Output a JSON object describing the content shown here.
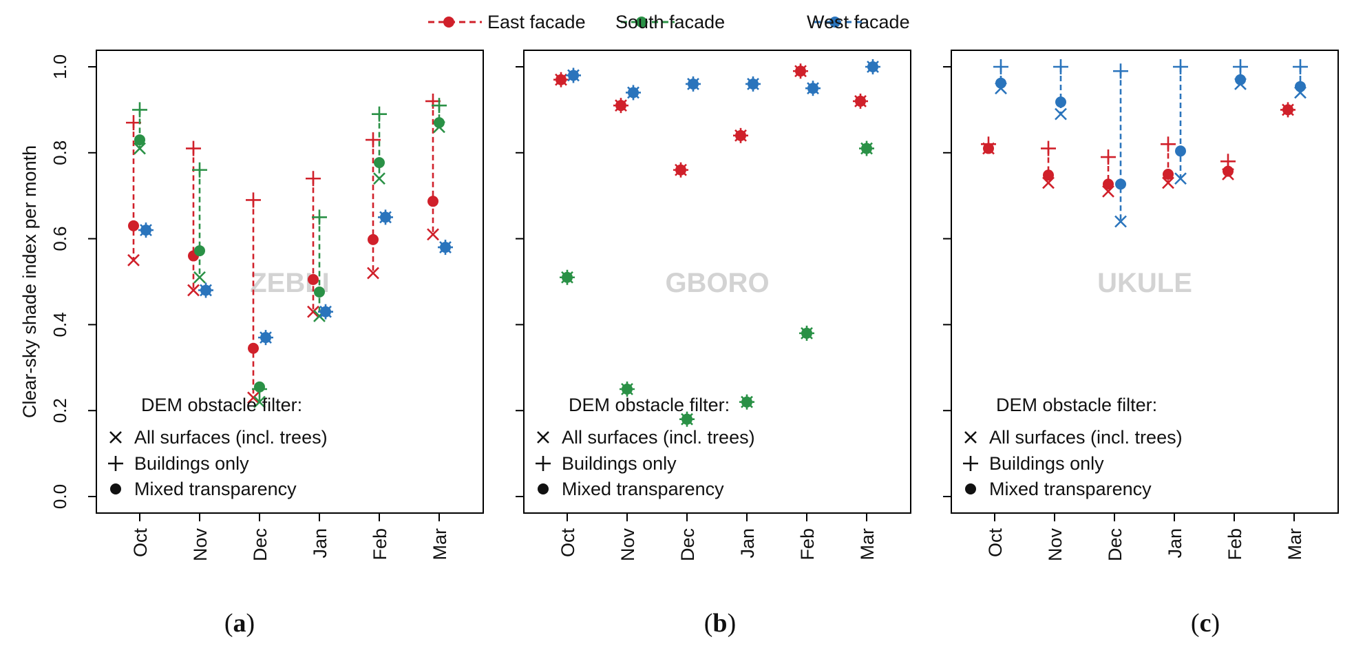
{
  "colors": {
    "east": "#d0202a",
    "south": "#2a9146",
    "west": "#2a74bc",
    "axis": "#000000",
    "watermark": "#d3d3d3"
  },
  "chart_data": {
    "type": "scatter",
    "ylabel": "Clear-sky shade index per month",
    "ylim": [
      0.0,
      1.0
    ],
    "yticks": [
      "0.0",
      "0.2",
      "0.4",
      "0.6",
      "0.8",
      "1.0"
    ],
    "ytick_values": [
      0.0,
      0.2,
      0.4,
      0.6,
      0.8,
      1.0
    ],
    "categories": [
      "Oct",
      "Nov",
      "Dec",
      "Jan",
      "Feb",
      "Mar"
    ],
    "legend": {
      "placement": "top",
      "entries": [
        {
          "name": "East facade",
          "key": "east"
        },
        {
          "name": "South facade",
          "key": "south"
        },
        {
          "name": "West facade",
          "key": "west"
        }
      ]
    },
    "filter_legend": {
      "title": "DEM obstacle filter:",
      "items": [
        {
          "symbol": "×",
          "label": "All surfaces (incl. trees)"
        },
        {
          "symbol": "+",
          "label": "Buildings only"
        },
        {
          "symbol": "●",
          "label": "Mixed transparency"
        }
      ]
    },
    "panels": [
      {
        "sublabel": "(a)",
        "sublabel_letter": "a",
        "site": "ZEBLI",
        "show_yaxis_labels": true,
        "series": [
          {
            "facade": "east",
            "all": [
              0.55,
              0.48,
              0.23,
              0.43,
              0.52,
              0.61
            ],
            "buildings": [
              0.87,
              0.81,
              0.69,
              0.74,
              0.83,
              0.92
            ],
            "mixed": [
              0.63,
              0.56,
              0.345,
              0.505,
              0.598,
              0.687
            ]
          },
          {
            "facade": "south",
            "all": [
              0.81,
              0.51,
              0.22,
              0.42,
              0.74,
              0.86
            ],
            "buildings": [
              0.9,
              0.76,
              0.25,
              0.65,
              0.89,
              0.91
            ],
            "mixed": [
              0.83,
              0.572,
              0.255,
              0.476,
              0.777,
              0.87
            ]
          },
          {
            "facade": "west",
            "all": [
              0.62,
              0.48,
              0.37,
              0.43,
              0.65,
              0.58
            ],
            "buildings": [
              0.62,
              0.48,
              0.37,
              0.43,
              0.65,
              0.58
            ],
            "mixed": [
              0.62,
              0.48,
              0.37,
              0.43,
              0.65,
              0.58
            ]
          }
        ]
      },
      {
        "sublabel": "(b)",
        "sublabel_letter": "b",
        "site": "GBORO",
        "show_yaxis_labels": false,
        "series": [
          {
            "facade": "east",
            "all": [
              0.97,
              0.91,
              0.76,
              0.84,
              0.99,
              0.92
            ],
            "buildings": [
              0.97,
              0.91,
              0.76,
              0.84,
              0.99,
              0.92
            ],
            "mixed": [
              0.97,
              0.91,
              0.76,
              0.84,
              0.99,
              0.92
            ]
          },
          {
            "facade": "south",
            "all": [
              0.51,
              0.25,
              0.18,
              0.22,
              0.38,
              0.81
            ],
            "buildings": [
              0.51,
              0.25,
              0.18,
              0.22,
              0.38,
              0.81
            ],
            "mixed": [
              0.51,
              0.25,
              0.18,
              0.22,
              0.38,
              0.81
            ]
          },
          {
            "facade": "west",
            "all": [
              0.98,
              0.94,
              0.96,
              0.96,
              0.95,
              1.0
            ],
            "buildings": [
              0.98,
              0.94,
              0.96,
              0.96,
              0.95,
              1.0
            ],
            "mixed": [
              0.98,
              0.94,
              0.96,
              0.96,
              0.95,
              1.0
            ]
          }
        ]
      },
      {
        "sublabel": "(c)",
        "sublabel_letter": "c",
        "site": "UKULE",
        "show_yaxis_labels": false,
        "series": [
          {
            "facade": "east",
            "all": [
              0.81,
              0.73,
              0.71,
              0.73,
              0.75,
              0.9
            ],
            "buildings": [
              0.82,
              0.81,
              0.79,
              0.82,
              0.78,
              0.9
            ],
            "mixed": [
              0.81,
              0.748,
              0.727,
              0.75,
              0.757,
              0.9
            ]
          },
          {
            "facade": "west",
            "all": [
              0.95,
              0.89,
              0.64,
              0.74,
              0.96,
              0.94
            ],
            "buildings": [
              1.0,
              1.0,
              0.99,
              1.0,
              1.0,
              1.0
            ],
            "mixed": [
              0.962,
              0.918,
              0.727,
              0.804,
              0.97,
              0.954
            ]
          }
        ]
      }
    ]
  }
}
